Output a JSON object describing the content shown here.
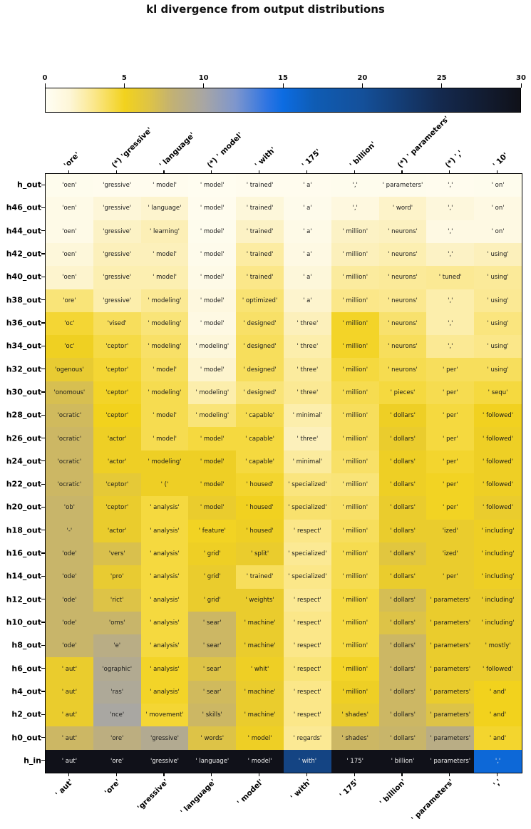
{
  "title": "kl divergence from output distributions",
  "colorbar": {
    "min": 0,
    "max": 30,
    "ticks": [
      "0",
      "5",
      "10",
      "15",
      "20",
      "25",
      "30"
    ]
  },
  "colormap_stops": [
    {
      "p": 0.0,
      "c": "#fffef4"
    },
    {
      "p": 0.05,
      "c": "#fdf6d8"
    },
    {
      "p": 0.1,
      "c": "#fbe88f"
    },
    {
      "p": 0.1667,
      "c": "#f2d21d"
    },
    {
      "p": 0.22,
      "c": "#ddc347"
    },
    {
      "p": 0.2667,
      "c": "#c2b174"
    },
    {
      "p": 0.3333,
      "c": "#a8a6a4"
    },
    {
      "p": 0.4,
      "c": "#7e96cd"
    },
    {
      "p": 0.4667,
      "c": "#2e74e2"
    },
    {
      "p": 0.5,
      "c": "#0c6ce2"
    },
    {
      "p": 0.5667,
      "c": "#0f5cb4"
    },
    {
      "p": 0.6667,
      "c": "#14509a"
    },
    {
      "p": 0.8333,
      "c": "#14294e"
    },
    {
      "p": 1.0,
      "c": "#101119"
    }
  ],
  "chart_data": {
    "type": "heatmap",
    "title": "kl divergence from output distributions",
    "colorbar_range": [
      0,
      30
    ],
    "legend_position": "top",
    "x_top_labels": [
      "'ore'",
      "(*) 'gressive'",
      "' language'",
      "(*) ' model'",
      "' with'",
      "' 175'",
      "' billion'",
      "(*) ' parameters'",
      "(*) ','",
      "' 10'"
    ],
    "x_bottom_labels": [
      "' aut'",
      "'ore'",
      "'gressive'",
      "' language'",
      "' model'",
      "' with'",
      "' 175'",
      "' billion'",
      "' parameters'",
      "','"
    ],
    "row_labels": [
      "h_out",
      "h46_out",
      "h44_out",
      "h42_out",
      "h40_out",
      "h38_out",
      "h36_out",
      "h34_out",
      "h32_out",
      "h30_out",
      "h28_out",
      "h26_out",
      "h24_out",
      "h22_out",
      "h20_out",
      "h18_out",
      "h16_out",
      "h14_out",
      "h12_out",
      "h10_out",
      "h8_out",
      "h6_out",
      "h4_out",
      "h2_out",
      "h0_out",
      "h_in"
    ],
    "cell_text": [
      [
        "'oen'",
        "'gressive'",
        "' model'",
        "' model'",
        "' trained'",
        "' a'",
        "','",
        "' parameters'",
        "','",
        "' on'"
      ],
      [
        "'oen'",
        "'gressive'",
        "' language'",
        "' model'",
        "' trained'",
        "' a'",
        "','",
        "' word'",
        "','",
        "' on'"
      ],
      [
        "'oen'",
        "'gressive'",
        "' learning'",
        "' model'",
        "' trained'",
        "' a'",
        "' million'",
        "' neurons'",
        "','",
        "' on'"
      ],
      [
        "'oen'",
        "'gressive'",
        "' model'",
        "' model'",
        "' trained'",
        "' a'",
        "' million'",
        "' neurons'",
        "','",
        "' using'"
      ],
      [
        "'oen'",
        "'gressive'",
        "' model'",
        "' model'",
        "' trained'",
        "' a'",
        "' million'",
        "' neurons'",
        "' tuned'",
        "' using'"
      ],
      [
        "'ore'",
        "'gressive'",
        "' modeling'",
        "' model'",
        "' optimized'",
        "' a'",
        "' million'",
        "' neurons'",
        "','",
        "' using'"
      ],
      [
        "'oc'",
        "'vised'",
        "' modeling'",
        "' model'",
        "' designed'",
        "' three'",
        "' million'",
        "' neurons'",
        "','",
        "' using'"
      ],
      [
        "'oc'",
        "'ceptor'",
        "' modeling'",
        "' modeling'",
        "' designed'",
        "' three'",
        "' million'",
        "' neurons'",
        "','",
        "' using'"
      ],
      [
        "'ogenous'",
        "'ceptor'",
        "' model'",
        "' model'",
        "' designed'",
        "' three'",
        "' million'",
        "' neurons'",
        "' per'",
        "' using'"
      ],
      [
        "'onomous'",
        "'ceptor'",
        "' modeling'",
        "' modeling'",
        "' designed'",
        "' three'",
        "' million'",
        "' pieces'",
        "' per'",
        "' sequ'"
      ],
      [
        "'ocratic'",
        "'ceptor'",
        "' model'",
        "' modeling'",
        "' capable'",
        "' minimal'",
        "' million'",
        "' dollars'",
        "' per'",
        "' followed'"
      ],
      [
        "'ocratic'",
        "'actor'",
        "' model'",
        "' model'",
        "' capable'",
        "' three'",
        "' million'",
        "' dollars'",
        "' per'",
        "' followed'"
      ],
      [
        "'ocratic'",
        "'actor'",
        "' modeling'",
        "' model'",
        "' capable'",
        "' minimal'",
        "' million'",
        "' dollars'",
        "' per'",
        "' followed'"
      ],
      [
        "'ocratic'",
        "'ceptor'",
        "' ('",
        "' model'",
        "' housed'",
        "' specialized'",
        "' million'",
        "' dollars'",
        "' per'",
        "' followed'"
      ],
      [
        "'ob'",
        "'ceptor'",
        "' analysis'",
        "' model'",
        "' housed'",
        "' specialized'",
        "' million'",
        "' dollars'",
        "' per'",
        "' followed'"
      ],
      [
        "'-'",
        "'actor'",
        "' analysis'",
        "' feature'",
        "' housed'",
        "' respect'",
        "' million'",
        "' dollars'",
        "'ized'",
        "' including'"
      ],
      [
        "'ode'",
        "'vers'",
        "' analysis'",
        "' grid'",
        "' split'",
        "' specialized'",
        "' million'",
        "' dollars'",
        "'ized'",
        "' including'"
      ],
      [
        "'ode'",
        "'pro'",
        "' analysis'",
        "' grid'",
        "' trained'",
        "' specialized'",
        "' million'",
        "' dollars'",
        "' per'",
        "' including'"
      ],
      [
        "'ode'",
        "'rict'",
        "' analysis'",
        "' grid'",
        "' weights'",
        "' respect'",
        "' million'",
        "' dollars'",
        "' parameters'",
        "' including'"
      ],
      [
        "'ode'",
        "'oms'",
        "' analysis'",
        "' sear'",
        "' machine'",
        "' respect'",
        "' million'",
        "' dollars'",
        "' parameters'",
        "' including'"
      ],
      [
        "'ode'",
        "'e'",
        "' analysis'",
        "' sear'",
        "' machine'",
        "' respect'",
        "' million'",
        "' dollars'",
        "' parameters'",
        "' mostly'"
      ],
      [
        "' aut'",
        "'ographic'",
        "' analysis'",
        "' sear'",
        "' whit'",
        "' respect'",
        "' million'",
        "' dollars'",
        "' parameters'",
        "' followed'"
      ],
      [
        "' aut'",
        "'ras'",
        "' analysis'",
        "' sear'",
        "' machine'",
        "' respect'",
        "' million'",
        "' dollars'",
        "' parameters'",
        "' and'"
      ],
      [
        "' aut'",
        "'nce'",
        "' movement'",
        "' skills'",
        "' machine'",
        "' respect'",
        "' shades'",
        "' dollars'",
        "' parameters'",
        "' and'"
      ],
      [
        "' aut'",
        "'ore'",
        "'gressive'",
        "' words'",
        "' model'",
        "' regards'",
        "' shades'",
        "' dollars'",
        "' parameters'",
        "' and'"
      ],
      [
        "' aut'",
        "'ore'",
        "'gressive'",
        "' language'",
        "' model'",
        "' with'",
        "' 175'",
        "' billion'",
        "' parameters'",
        "','"
      ]
    ],
    "kl_values": [
      [
        0.4,
        0.3,
        0.3,
        0.2,
        0.3,
        0.3,
        0.4,
        0.4,
        0.3,
        0.4
      ],
      [
        0.7,
        1.5,
        1.7,
        0.3,
        1.4,
        0.5,
        1.1,
        1.8,
        1.3,
        0.9
      ],
      [
        0.7,
        1.9,
        2.2,
        0.4,
        1.9,
        0.7,
        1.9,
        2.0,
        0.9,
        0.9
      ],
      [
        1.4,
        2.1,
        2.1,
        0.5,
        2.6,
        0.9,
        2.1,
        2.3,
        1.9,
        2.1
      ],
      [
        1.7,
        2.3,
        2.3,
        0.7,
        3.1,
        1.4,
        2.7,
        2.8,
        2.9,
        2.8
      ],
      [
        3.4,
        2.4,
        2.9,
        1.1,
        3.5,
        1.7,
        3.1,
        3.0,
        2.4,
        2.9
      ],
      [
        4.6,
        3.9,
        3.4,
        0.9,
        3.7,
        2.1,
        4.8,
        3.6,
        2.4,
        3.3
      ],
      [
        5.2,
        4.3,
        3.7,
        1.4,
        3.9,
        2.4,
        4.8,
        3.9,
        2.9,
        3.1
      ],
      [
        5.8,
        4.6,
        3.9,
        1.7,
        3.9,
        2.7,
        4.4,
        4.1,
        3.9,
        3.9
      ],
      [
        6.9,
        4.8,
        4.1,
        2.4,
        3.4,
        2.9,
        4.1,
        4.4,
        4.1,
        4.4
      ],
      [
        7.3,
        5.0,
        4.1,
        3.4,
        4.1,
        2.4,
        3.9,
        5.3,
        4.4,
        5.1
      ],
      [
        7.5,
        5.3,
        4.1,
        4.4,
        4.4,
        2.1,
        3.9,
        5.6,
        4.4,
        5.3
      ],
      [
        7.5,
        5.3,
        5.3,
        5.3,
        4.4,
        2.7,
        3.7,
        5.3,
        4.7,
        5.3
      ],
      [
        7.5,
        6.0,
        5.3,
        5.3,
        4.7,
        3.3,
        3.4,
        5.3,
        4.9,
        5.3
      ],
      [
        7.7,
        5.6,
        4.4,
        5.6,
        5.1,
        3.6,
        3.7,
        5.6,
        4.9,
        5.6
      ],
      [
        7.7,
        5.6,
        4.4,
        4.9,
        5.3,
        3.1,
        3.9,
        5.6,
        5.6,
        5.3
      ],
      [
        7.7,
        6.8,
        4.4,
        5.3,
        5.6,
        2.9,
        4.1,
        6.3,
        5.6,
        5.3
      ],
      [
        7.7,
        5.8,
        4.4,
        5.6,
        3.9,
        3.1,
        4.1,
        5.6,
        5.6,
        5.3
      ],
      [
        7.7,
        6.6,
        4.4,
        5.6,
        5.6,
        2.9,
        4.4,
        7.0,
        5.6,
        5.6
      ],
      [
        7.7,
        7.7,
        4.4,
        7.5,
        5.6,
        3.1,
        4.4,
        6.6,
        5.6,
        5.6
      ],
      [
        7.7,
        8.7,
        4.4,
        7.5,
        5.6,
        3.1,
        4.4,
        7.5,
        5.6,
        5.6
      ],
      [
        5.6,
        9.2,
        4.8,
        6.6,
        5.3,
        3.4,
        4.8,
        7.5,
        5.6,
        5.6
      ],
      [
        5.6,
        9.5,
        4.8,
        7.3,
        5.6,
        3.1,
        5.3,
        7.5,
        5.6,
        5.0
      ],
      [
        5.6,
        9.9,
        4.6,
        7.5,
        5.6,
        3.1,
        5.6,
        7.5,
        6.6,
        5.0
      ],
      [
        7.5,
        8.5,
        9.2,
        6.6,
        5.3,
        2.9,
        7.5,
        7.7,
        8.7,
        4.7
      ],
      [
        30,
        30,
        30,
        30,
        30,
        21.5,
        30,
        30,
        30,
        15.5
      ]
    ]
  }
}
